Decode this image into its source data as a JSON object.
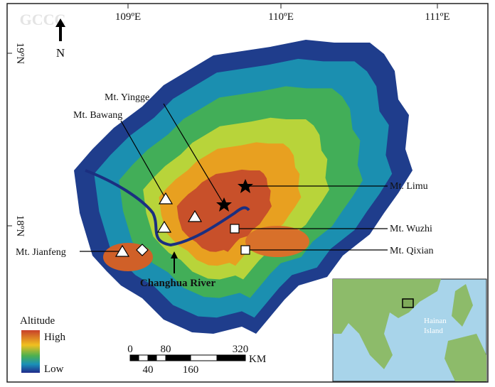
{
  "header": {
    "watermark": "GCCC",
    "north": "N"
  },
  "graticule": {
    "longitudes": [
      "109ºE",
      "110ºE",
      "111ºE"
    ],
    "latitudes": [
      "19ºN",
      "18ºN"
    ]
  },
  "peaks": [
    "Mt. Yingge",
    "Mt. Bawang",
    "Mt. Limu",
    "Mt. Wuzhi",
    "Mt. Jianfeng",
    "Mt. Qixian"
  ],
  "river": "Changhua River",
  "legend": {
    "title": "Altitude",
    "high": "High",
    "low": "Low"
  },
  "scale_bar": {
    "top": [
      "0",
      "80",
      "320"
    ],
    "bottom": [
      "40",
      "160"
    ],
    "unit": "KM"
  },
  "inset": {
    "label": [
      "Hainan",
      "Island"
    ]
  }
}
